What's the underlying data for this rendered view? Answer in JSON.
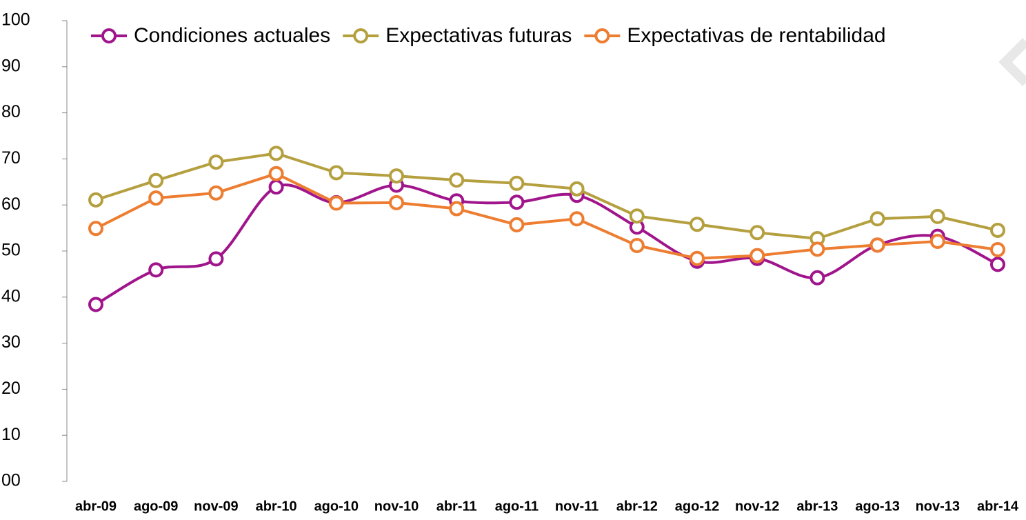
{
  "chart_data": {
    "type": "line",
    "categories": [
      "abr-09",
      "ago-09",
      "nov-09",
      "abr-10",
      "ago-10",
      "nov-10",
      "abr-11",
      "ago-11",
      "nov-11",
      "abr-12",
      "ago-12",
      "nov-12",
      "abr-13",
      "ago-13",
      "nov-13",
      "abr-14"
    ],
    "series": [
      {
        "name": "Condiciones actuales",
        "color": "#a0158b",
        "smooth": true,
        "values": [
          38.4,
          45.9,
          48.3,
          63.9,
          60.5,
          64.3,
          60.9,
          60.6,
          62.1,
          55.2,
          47.8,
          48.4,
          44.2,
          51.3,
          53.2,
          47.1
        ]
      },
      {
        "name": "Expectativas futuras",
        "color": "#b5a040",
        "smooth": false,
        "values": [
          61.1,
          65.3,
          69.3,
          71.2,
          67.0,
          66.3,
          65.4,
          64.7,
          63.5,
          57.6,
          55.8,
          54.0,
          52.7,
          57.0,
          57.5,
          54.5
        ]
      },
      {
        "name": "Expectativas de rentabilidad",
        "color": "#ed7d31",
        "smooth": false,
        "values": [
          54.9,
          61.5,
          62.6,
          66.8,
          60.4,
          60.5,
          59.2,
          55.7,
          57.0,
          51.2,
          48.4,
          49.0,
          50.4,
          51.3,
          52.1,
          50.3
        ]
      }
    ],
    "ylim": [
      0,
      100
    ],
    "yticks": [
      {
        "value": 0,
        "label": "00"
      },
      10,
      20,
      30,
      40,
      50,
      60,
      70,
      80,
      90,
      100
    ],
    "grid": false,
    "legend": "top"
  }
}
